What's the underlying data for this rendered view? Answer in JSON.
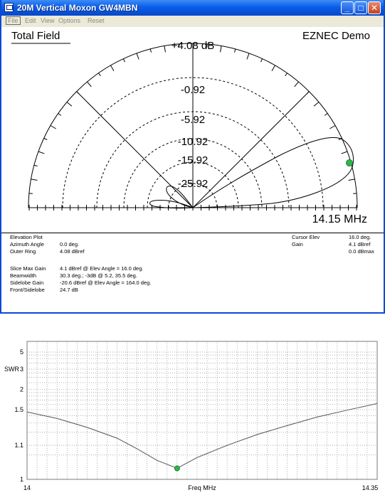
{
  "window": {
    "title": "20M Vertical Moxon GW4MBN",
    "menu": [
      "File",
      "Edit",
      "View",
      "Options",
      "Reset"
    ],
    "buttons": {
      "minimize": "_",
      "maximize": "□",
      "close": "✕"
    }
  },
  "pattern": {
    "heading": "Total Field",
    "brand": "EZNEC Demo",
    "ring_labels": [
      "+4.08 dB",
      "-0.92",
      "-5.92",
      "-10.92",
      "-15.92",
      "-25.92"
    ],
    "frequency": "14.15 MHz"
  },
  "info": {
    "left": [
      {
        "label": "Elevation Plot",
        "value": ""
      },
      {
        "label": "Azimuth Angle",
        "value": "0.0 deg."
      },
      {
        "label": "Outer Ring",
        "value": "4.08 dBref"
      }
    ],
    "stats": [
      {
        "label": "Slice Max Gain",
        "value": "4.1 dBref @ Elev Angle = 16.0 deg."
      },
      {
        "label": "Beamwidth",
        "value": "30.3 deg.; -3dB @ 5.2, 35.5 deg."
      },
      {
        "label": "Sidelobe Gain",
        "value": "-20.6 dBref @ Elev Angle = 164.0 deg."
      },
      {
        "label": "Front/Sidelobe",
        "value": "24.7 dB"
      }
    ],
    "cursor": [
      {
        "label": "Cursor Elev",
        "value": "16.0 deg."
      },
      {
        "label": "Gain",
        "value": "4.1 dBref"
      },
      {
        "label": "",
        "value": "0.0 dBmax"
      }
    ]
  },
  "swr_chart": {
    "ylabel": "SWR",
    "xlabel": "Freq MHz",
    "x_min_label": "14",
    "x_max_label": "14.35",
    "y_ticks": [
      "5",
      "3",
      "2",
      "1.5",
      "1.1",
      "1"
    ]
  },
  "chart_data": {
    "type": "line",
    "xlabel": "Freq MHz",
    "ylabel": "SWR",
    "xlim": [
      14,
      14.35
    ],
    "y_scale": "swr",
    "y_ticks": [
      1,
      1.1,
      1.5,
      2,
      3,
      5
    ],
    "grid": true,
    "series": [
      {
        "x": [
          14.0,
          14.03,
          14.06,
          14.09,
          14.11,
          14.13,
          14.15,
          14.17,
          14.2,
          14.23,
          14.26,
          14.29,
          14.32,
          14.35
        ],
        "y": [
          1.46,
          1.36,
          1.25,
          1.15,
          1.08,
          1.03,
          1.01,
          1.04,
          1.1,
          1.18,
          1.27,
          1.38,
          1.49,
          1.62
        ]
      }
    ],
    "marker": {
      "x": 14.15,
      "y": 1.01
    }
  }
}
